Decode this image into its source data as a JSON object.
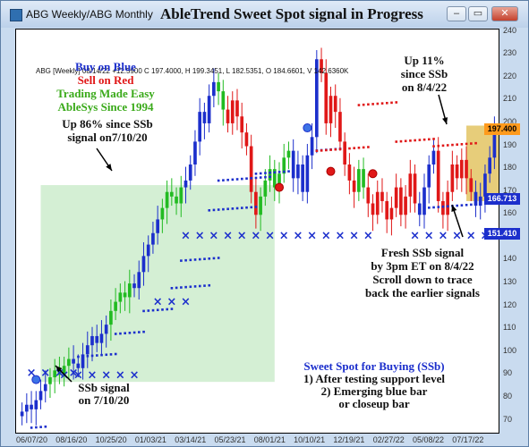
{
  "window": {
    "title": "ABG Weekly/ABG Monthly",
    "minimize_glyph": "–",
    "restore_glyph": "▭",
    "close_glyph": "✕"
  },
  "chart_data": {
    "type": "candlestick",
    "title": "AbleTrend Sweet Spot signal in Progress",
    "info_line": "ABG [Weekly] 08/14/22 +12.5900 C 197.4000, H 199.3451, L 182.5351, O 184.6601, V 142.6360K",
    "y_ticks": [
      70,
      80,
      90,
      100,
      110,
      120,
      130,
      140,
      150,
      160,
      170,
      180,
      190,
      200,
      210,
      220,
      230,
      240
    ],
    "ylim": [
      64,
      241
    ],
    "x_ticks": [
      "06/07/20",
      "08/16/20",
      "10/25/20",
      "01/03/21",
      "03/14/21",
      "05/23/21",
      "08/01/21",
      "10/10/21",
      "12/19/21",
      "02/27/22",
      "05/08/22",
      "07/17/22"
    ],
    "price_labels": [
      {
        "value": 197.4,
        "text": "197.400",
        "bg": "#ff9a1c",
        "fg": "#000000"
      },
      {
        "value": 166.713,
        "text": "166.713",
        "bg": "#1c2fcc",
        "fg": "#ffffff"
      },
      {
        "value": 151.41,
        "text": "151.410",
        "bg": "#1c2fcc",
        "fg": "#ffffff"
      }
    ],
    "closes": [
      74,
      77,
      75,
      79,
      83,
      86,
      89,
      92,
      90,
      94,
      97,
      95,
      93,
      99,
      103,
      107,
      104,
      108,
      112,
      118,
      122,
      126,
      124,
      130,
      128,
      135,
      142,
      147,
      152,
      158,
      163,
      170,
      168,
      165,
      172,
      175,
      182,
      192,
      205,
      200,
      212,
      218,
      214,
      206,
      200,
      210,
      203,
      196,
      190,
      170,
      160,
      168,
      175,
      180,
      172,
      178,
      185,
      188,
      176,
      182,
      170,
      186,
      194,
      228,
      222,
      200,
      212,
      205,
      192,
      182,
      175,
      170,
      180,
      172,
      165,
      160,
      170,
      166,
      158,
      163,
      172,
      160,
      168,
      178,
      165,
      160,
      172,
      182,
      188,
      166,
      160,
      170,
      182,
      176,
      184,
      176,
      170,
      164,
      168,
      178,
      185,
      197
    ],
    "blue_bars": [
      [
        0,
        5
      ],
      [
        11,
        18
      ],
      [
        24,
        29
      ],
      [
        35,
        41
      ],
      [
        58,
        63
      ],
      [
        85,
        88
      ],
      [
        97,
        101
      ]
    ],
    "red_bars": [
      [
        44,
        50
      ],
      [
        64,
        71
      ],
      [
        74,
        84
      ],
      [
        89,
        96
      ]
    ],
    "signals_blue": [
      [
        3,
        88
      ],
      [
        61,
        198
      ]
    ],
    "signals_red": [
      [
        55,
        172
      ],
      [
        66,
        179
      ],
      [
        75,
        178
      ]
    ],
    "support_x": [
      [
        2,
        12,
        91
      ],
      [
        9,
        24,
        90
      ],
      [
        29,
        35,
        122
      ],
      [
        35,
        75,
        151
      ],
      [
        84,
        101,
        151
      ]
    ],
    "stops_blue": [
      [
        2,
        5,
        67
      ],
      [
        12,
        20,
        98
      ],
      [
        20,
        26,
        108
      ],
      [
        26,
        32,
        118
      ],
      [
        32,
        40,
        128
      ],
      [
        34,
        42,
        140
      ],
      [
        40,
        50,
        162
      ],
      [
        42,
        53,
        175
      ],
      [
        50,
        60,
        178
      ],
      [
        62,
        68,
        188
      ],
      [
        86,
        98,
        163
      ]
    ],
    "stops_red": [
      [
        63,
        74,
        188
      ],
      [
        72,
        80,
        208
      ],
      [
        80,
        88,
        192
      ],
      [
        88,
        97,
        190
      ]
    ],
    "green_zone": {
      "x": [
        4,
        54
      ],
      "y": [
        87,
        173
      ],
      "color": "#cdeccd"
    },
    "yellow_zone": {
      "x": [
        95,
        102
      ],
      "y": [
        166,
        199
      ],
      "color": "#e3c463"
    },
    "annotations": {
      "buy_on_blue": "Buy on Blue",
      "sell_on_red": "Sell on Red",
      "trading_easy": "Trading Made Easy",
      "ablesys": "AbleSys Since 1994",
      "up86_line1": "Up 86% since SSb",
      "up86_line2": "signal on7/10/20",
      "up11_line1": "Up 11%",
      "up11_line2": "since SSb",
      "up11_line3": "on 8/4/22",
      "ssb_line1": "SSb signal",
      "ssb_line2": "on 7/10/20",
      "fresh_line1": "Fresh SSb signal",
      "fresh_line2": "by 3pm ET on 8/4/22",
      "fresh_line3": "Scroll down to trace",
      "fresh_line4": "back the earlier signals",
      "sweet_line1": "Sweet Spot for Buying (SSb)",
      "sweet_line2": "1) After testing support level",
      "sweet_line3": "2) Emerging blue bar",
      "sweet_line4": "or closeup bar"
    },
    "colors": {
      "up": "#22bb22",
      "down": "#22bb22",
      "blue": "#1c2fcc",
      "red": "#e01818",
      "green_text": "#3aaa1a"
    }
  }
}
